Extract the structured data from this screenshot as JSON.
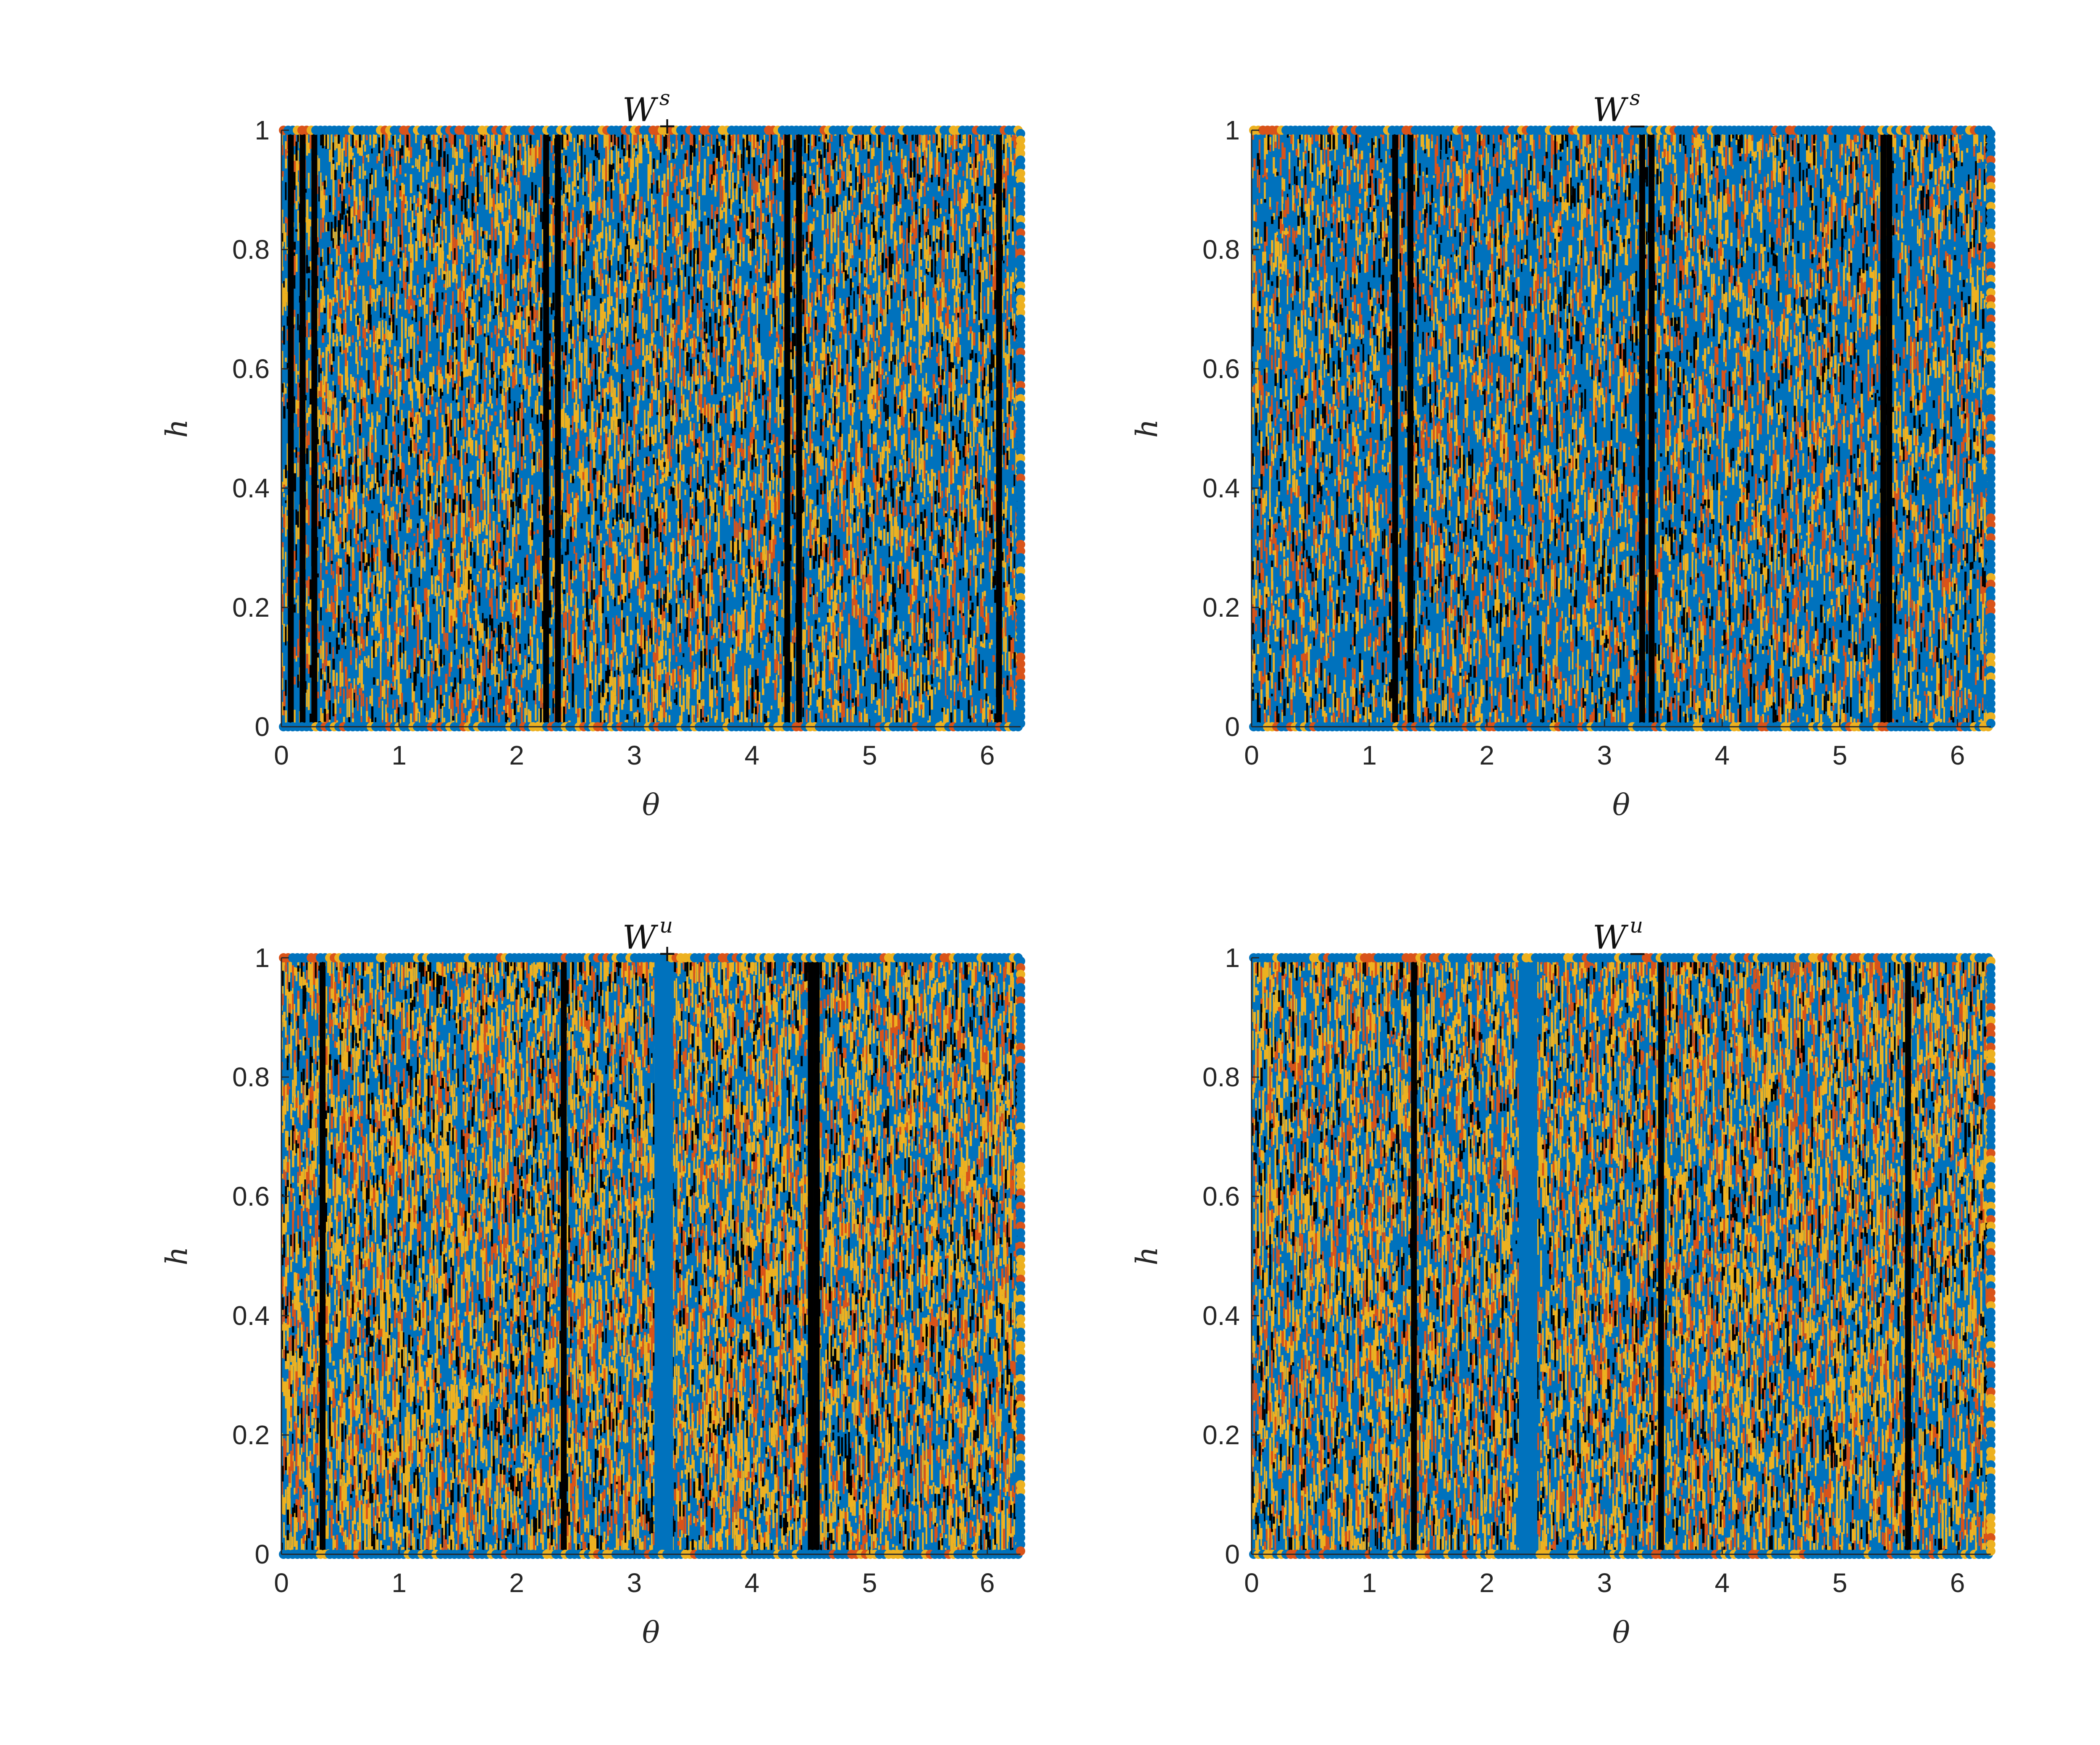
{
  "colors": {
    "blue": "#0072BD",
    "orange": "#D95319",
    "yellow": "#EDB120",
    "black": "#000000"
  },
  "chart_data": [
    {
      "type": "scatter",
      "title_main": "W",
      "title_sup": "s",
      "title_sub": "+",
      "xlabel": "θ",
      "ylabel": "h",
      "xlim": [
        0,
        6.2832
      ],
      "ylim": [
        0,
        1
      ],
      "xticks": [
        "0",
        "1",
        "2",
        "3",
        "4",
        "5",
        "6"
      ],
      "yticks": [
        "0",
        "0.2",
        "0.4",
        "0.6",
        "0.8",
        "1"
      ],
      "series": [
        {
          "color": "blue",
          "share": 0.55
        },
        {
          "color": "yellow",
          "share": 0.24
        },
        {
          "color": "orange",
          "share": 0.12
        },
        {
          "color": "black",
          "share": 0.09
        }
      ],
      "black_bands": [
        0.08,
        0.18,
        0.28,
        2.25,
        2.35,
        4.3,
        4.4,
        6.1
      ],
      "blue_bands": [],
      "seed": 11
    },
    {
      "type": "scatter",
      "title_main": "W",
      "title_sup": "s",
      "title_sub": "−",
      "xlabel": "θ",
      "ylabel": "h",
      "xlim": [
        0,
        6.2832
      ],
      "ylim": [
        0,
        1
      ],
      "xticks": [
        "0",
        "1",
        "2",
        "3",
        "4",
        "5",
        "6"
      ],
      "yticks": [
        "0",
        "0.2",
        "0.4",
        "0.6",
        "0.8",
        "1"
      ],
      "series": [
        {
          "color": "blue",
          "share": 0.6
        },
        {
          "color": "yellow",
          "share": 0.2
        },
        {
          "color": "orange",
          "share": 0.12
        },
        {
          "color": "black",
          "share": 0.08
        }
      ],
      "black_bands": [
        1.22,
        1.35,
        3.32,
        3.4,
        5.37,
        5.42
      ],
      "blue_bands": [],
      "seed": 23
    },
    {
      "type": "scatter",
      "title_main": "W",
      "title_sup": "u",
      "title_sub": "+",
      "xlabel": "θ",
      "ylabel": "h",
      "xlim": [
        0,
        6.2832
      ],
      "ylim": [
        0,
        1
      ],
      "xticks": [
        "0",
        "1",
        "2",
        "3",
        "4",
        "5",
        "6"
      ],
      "yticks": [
        "0",
        "0.2",
        "0.4",
        "0.6",
        "0.8",
        "1"
      ],
      "series": [
        {
          "color": "blue",
          "share": 0.45
        },
        {
          "color": "yellow",
          "share": 0.32
        },
        {
          "color": "orange",
          "share": 0.14
        },
        {
          "color": "black",
          "share": 0.09
        }
      ],
      "black_bands": [
        0.35,
        2.4,
        4.5,
        4.55
      ],
      "blue_bands": [
        3.25
      ],
      "seed": 37
    },
    {
      "type": "scatter",
      "title_main": "W",
      "title_sup": "u",
      "title_sub": "−",
      "xlabel": "θ",
      "ylabel": "h",
      "xlim": [
        0,
        6.2832
      ],
      "ylim": [
        0,
        1
      ],
      "xticks": [
        "0",
        "1",
        "2",
        "3",
        "4",
        "5",
        "6"
      ],
      "yticks": [
        "0",
        "0.2",
        "0.4",
        "0.6",
        "0.8",
        "1"
      ],
      "series": [
        {
          "color": "blue",
          "share": 0.47
        },
        {
          "color": "yellow",
          "share": 0.31
        },
        {
          "color": "orange",
          "share": 0.14
        },
        {
          "color": "black",
          "share": 0.08
        }
      ],
      "black_bands": [
        1.38,
        3.48,
        5.58
      ],
      "blue_bands": [
        2.35
      ],
      "seed": 53
    }
  ]
}
